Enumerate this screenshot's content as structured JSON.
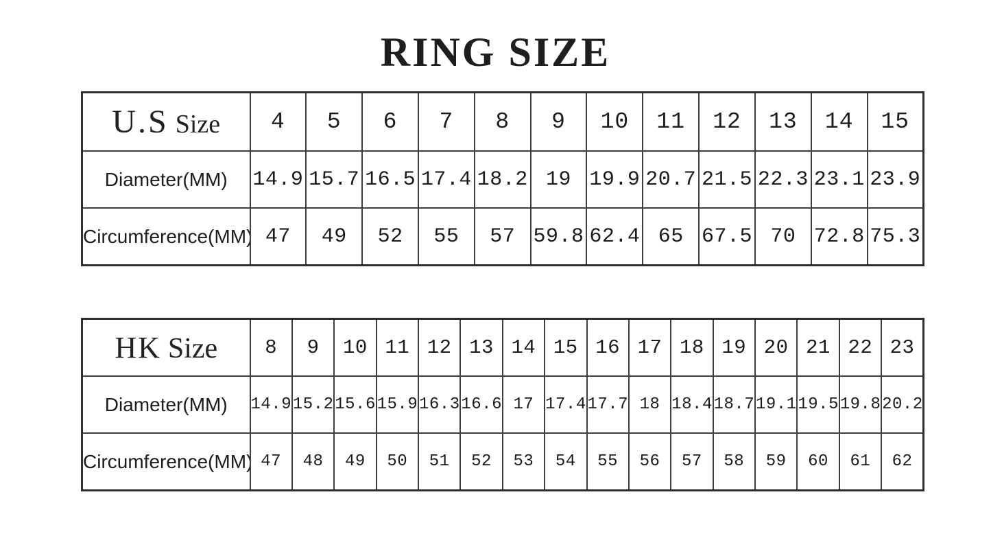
{
  "title": "RING SIZE",
  "colors": {
    "background": "#ffffff",
    "text": "#1c1c1c",
    "border": "#3f3f3f"
  },
  "chart_data": [
    {
      "type": "table",
      "name": "us-ring-size",
      "header": {
        "main": "U.S",
        "sub": "Size"
      },
      "sizes": [
        "4",
        "5",
        "6",
        "7",
        "8",
        "9",
        "10",
        "11",
        "12",
        "13",
        "14",
        "15"
      ],
      "rows": [
        {
          "label": "Diameter(MM)",
          "values": [
            "14.9",
            "15.7",
            "16.5",
            "17.4",
            "18.2",
            "19",
            "19.9",
            "20.7",
            "21.5",
            "22.3",
            "23.1",
            "23.9"
          ]
        },
        {
          "label": "Circumference(MM)",
          "values": [
            "47",
            "49",
            "52",
            "55",
            "57",
            "59.8",
            "62.4",
            "65",
            "67.5",
            "70",
            "72.8",
            "75.3"
          ]
        }
      ]
    },
    {
      "type": "table",
      "name": "hk-ring-size",
      "header": {
        "main": "HK",
        "sub": "Size"
      },
      "sizes": [
        "8",
        "9",
        "10",
        "11",
        "12",
        "13",
        "14",
        "15",
        "16",
        "17",
        "18",
        "19",
        "20",
        "21",
        "22",
        "23"
      ],
      "rows": [
        {
          "label": "Diameter(MM)",
          "values": [
            "14.9",
            "15.2",
            "15.6",
            "15.9",
            "16.3",
            "16.6",
            "17",
            "17.4",
            "17.7",
            "18",
            "18.4",
            "18.7",
            "19.1",
            "19.5",
            "19.8",
            "20.2"
          ]
        },
        {
          "label": "Circumference(MM)",
          "values": [
            "47",
            "48",
            "49",
            "50",
            "51",
            "52",
            "53",
            "54",
            "55",
            "56",
            "57",
            "58",
            "59",
            "60",
            "61",
            "62"
          ]
        }
      ]
    }
  ]
}
